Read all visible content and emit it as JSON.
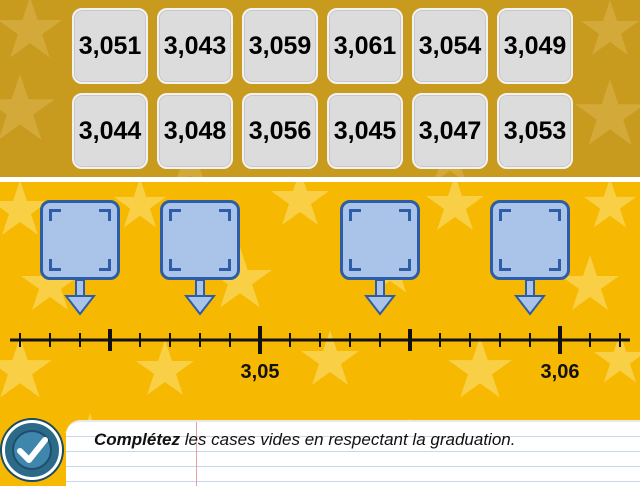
{
  "tiles": [
    "3,051",
    "3,043",
    "3,059",
    "3,061",
    "3,054",
    "3,049",
    "3,044",
    "3,048",
    "3,056",
    "3,045",
    "3,047",
    "3,053"
  ],
  "number_line": {
    "labels": [
      "3,05",
      "3,06"
    ]
  },
  "drop_boxes_count": 4,
  "instruction": {
    "bold": "Complétez",
    "rest": " les cases vides en respectant la graduation."
  },
  "colors": {
    "top_panel": "#c89a1e",
    "background": "#f6b800",
    "tile": "#dcdcdc",
    "drop_box": "#a9c4e8",
    "drop_border": "#2d5da6",
    "check_button": "#2c6a8a"
  },
  "icons": {
    "check_button": "checkmark-icon"
  }
}
